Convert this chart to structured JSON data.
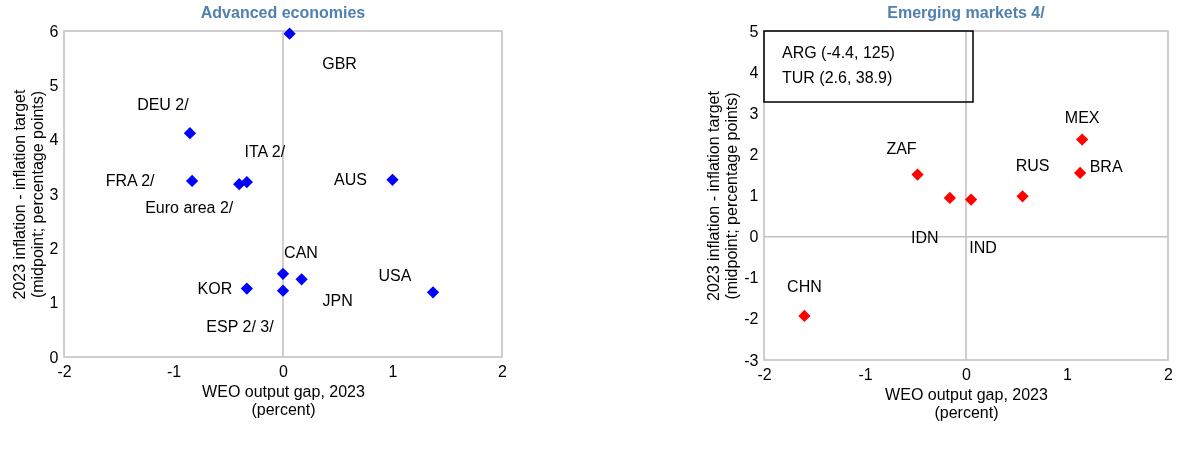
{
  "chart_data": [
    {
      "type": "scatter",
      "title": "Advanced economies",
      "xlabel": "WEO output gap, 2023\n(percent)",
      "ylabel": "2023 inflation - inflation target\n(midpoint; percentage points)",
      "xlim": [
        -2,
        2
      ],
      "ylim": [
        0,
        6
      ],
      "xticks": [
        -2,
        -1,
        0,
        1,
        2
      ],
      "yticks": [
        0,
        1,
        2,
        3,
        4,
        5,
        6
      ],
      "grid": false,
      "legend": false,
      "marker": "diamond",
      "ref_lines": [
        {
          "axis": "x",
          "value": 0
        }
      ],
      "series": [
        {
          "name": "GBR",
          "color": "#0000ff",
          "x": [
            0.06
          ],
          "values": [
            5.95
          ]
        },
        {
          "name": "DEU 2/",
          "color": "#0000ff",
          "x": [
            -0.85
          ],
          "values": [
            4.12
          ]
        },
        {
          "name": "ITA 2/",
          "color": "#0000ff",
          "x": [
            -0.33
          ],
          "values": [
            3.22
          ]
        },
        {
          "name": "Euro area 2/",
          "color": "#0000ff",
          "x": [
            -0.4
          ],
          "values": [
            3.18
          ]
        },
        {
          "name": "FRA 2/",
          "color": "#0000ff",
          "x": [
            -0.83
          ],
          "values": [
            3.24
          ]
        },
        {
          "name": "AUS",
          "color": "#0000ff",
          "x": [
            1.0
          ],
          "values": [
            3.26
          ]
        },
        {
          "name": "CAN",
          "color": "#0000ff",
          "x": [
            0.0
          ],
          "values": [
            1.53
          ]
        },
        {
          "name": "KOR",
          "color": "#0000ff",
          "x": [
            -0.33
          ],
          "values": [
            1.26
          ]
        },
        {
          "name": "ESP 2/ 3/",
          "color": "#0000ff",
          "x": [
            0.0
          ],
          "values": [
            1.22
          ]
        },
        {
          "name": "JPN",
          "color": "#0000ff",
          "x": [
            0.17
          ],
          "values": [
            1.43
          ]
        },
        {
          "name": "USA",
          "color": "#0000ff",
          "x": [
            1.37
          ],
          "values": [
            1.19
          ]
        }
      ]
    },
    {
      "type": "scatter",
      "title": "Emerging markets 4/",
      "xlabel": "WEO output gap, 2023\n(percent)",
      "ylabel": "2023 inflation - inflation target\n(midpoint; percentage points)",
      "xlim": [
        -2,
        2
      ],
      "ylim": [
        -3,
        5
      ],
      "xticks": [
        -2,
        -1,
        0,
        1,
        2
      ],
      "yticks": [
        -3,
        -2,
        -1,
        0,
        1,
        2,
        3,
        4,
        5
      ],
      "grid": false,
      "legend": false,
      "marker": "diamond",
      "annotations": [
        "ARG (-4.4, 125)",
        "TUR (2.6, 38.9)"
      ],
      "ref_lines": [
        {
          "axis": "x",
          "value": 0
        },
        {
          "axis": "y",
          "value": 0
        }
      ],
      "series": [
        {
          "name": "MEX",
          "color": "#ff0000",
          "x": [
            1.15
          ],
          "values": [
            2.36
          ]
        },
        {
          "name": "BRA",
          "color": "#ff0000",
          "x": [
            1.13
          ],
          "values": [
            1.55
          ]
        },
        {
          "name": "RUS",
          "color": "#ff0000",
          "x": [
            0.56
          ],
          "values": [
            0.98
          ]
        },
        {
          "name": "IND",
          "color": "#ff0000",
          "x": [
            0.05
          ],
          "values": [
            0.9
          ]
        },
        {
          "name": "IDN",
          "color": "#ff0000",
          "x": [
            -0.16
          ],
          "values": [
            0.94
          ]
        },
        {
          "name": "ZAF",
          "color": "#ff0000",
          "x": [
            -0.48
          ],
          "values": [
            1.51
          ]
        },
        {
          "name": "CHN",
          "color": "#ff0000",
          "x": [
            -1.6
          ],
          "values": [
            -1.93
          ]
        }
      ]
    }
  ]
}
